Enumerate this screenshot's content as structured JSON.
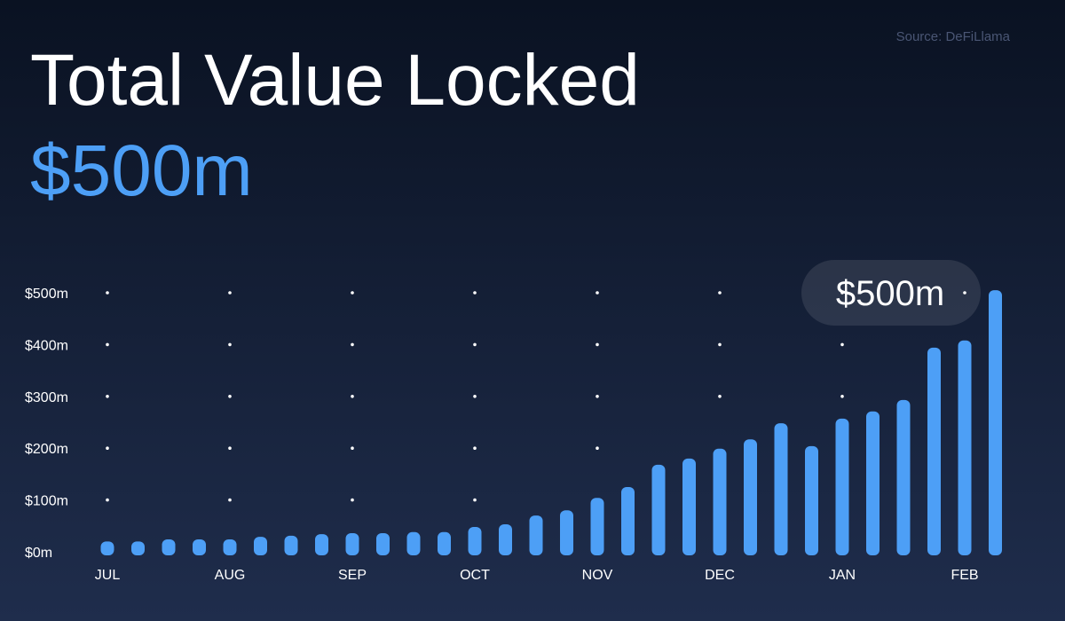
{
  "chart_data": {
    "type": "bar",
    "title": "Total Value Locked",
    "subtitle": "$500m",
    "source": "Source: DeFiLlama",
    "annotation": "$500m",
    "categories": [
      "JUL",
      null,
      null,
      null,
      "AUG",
      null,
      null,
      null,
      "SEP",
      null,
      null,
      null,
      "OCT",
      null,
      null,
      null,
      "NOV",
      null,
      null,
      null,
      "DEC",
      null,
      null,
      null,
      "JAN",
      null,
      null,
      null,
      "FEB",
      null
    ],
    "values": [
      20,
      20,
      24,
      24,
      24,
      29,
      31,
      34,
      36,
      36,
      38,
      38,
      48,
      53,
      70,
      80,
      104,
      125,
      168,
      180,
      199,
      217,
      248,
      204,
      257,
      271,
      293,
      394,
      408,
      505
    ],
    "color": "#4d9ff6",
    "ylim": [
      0,
      500
    ],
    "yticks": [
      {
        "value": 0,
        "label": "$0m"
      },
      {
        "value": 100,
        "label": "$100m"
      },
      {
        "value": 200,
        "label": "$200m"
      },
      {
        "value": 300,
        "label": "$300m"
      },
      {
        "value": 400,
        "label": "$400m"
      },
      {
        "value": 500,
        "label": "$500m"
      }
    ],
    "grid": true
  }
}
